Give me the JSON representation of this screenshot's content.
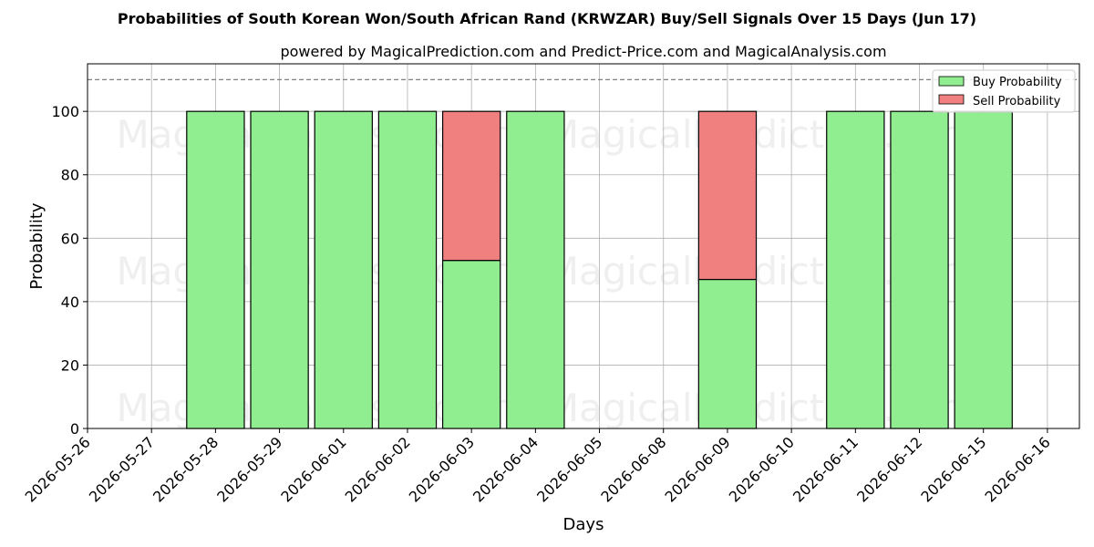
{
  "chart_data": {
    "type": "bar",
    "stacked": true,
    "title": "Probabilities of South Korean Won/South African Rand (KRWZAR) Buy/Sell Signals Over 15 Days (Jun 17)",
    "subtitle": "powered by MagicalPrediction.com and Predict-Price.com and MagicalAnalysis.com",
    "xlabel": "Days",
    "ylabel": "Probability",
    "ylim": [
      0,
      115
    ],
    "yticks": [
      0,
      20,
      40,
      60,
      80,
      100
    ],
    "reference_line": 110,
    "grid": true,
    "legend_position": "top-right",
    "categories": [
      "2026-05-26",
      "2026-05-27",
      "2026-05-28",
      "2026-05-29",
      "2026-06-01",
      "2026-06-02",
      "2026-06-03",
      "2026-06-04",
      "2026-06-05",
      "2026-06-08",
      "2026-06-09",
      "2026-06-10",
      "2026-06-11",
      "2026-06-12",
      "2026-06-15",
      "2026-06-16"
    ],
    "series": [
      {
        "name": "Buy Probability",
        "color": "#90ee90",
        "values": [
          null,
          null,
          100,
          100,
          100,
          100,
          53,
          100,
          null,
          null,
          47,
          null,
          100,
          100,
          100,
          null
        ]
      },
      {
        "name": "Sell Probability",
        "color": "#f08080",
        "values": [
          null,
          null,
          0,
          0,
          0,
          0,
          47,
          0,
          null,
          null,
          53,
          null,
          0,
          0,
          0,
          null
        ]
      }
    ]
  },
  "watermarks": [
    "MagicalAnalysis.com",
    "MagicalPrediction.com"
  ]
}
